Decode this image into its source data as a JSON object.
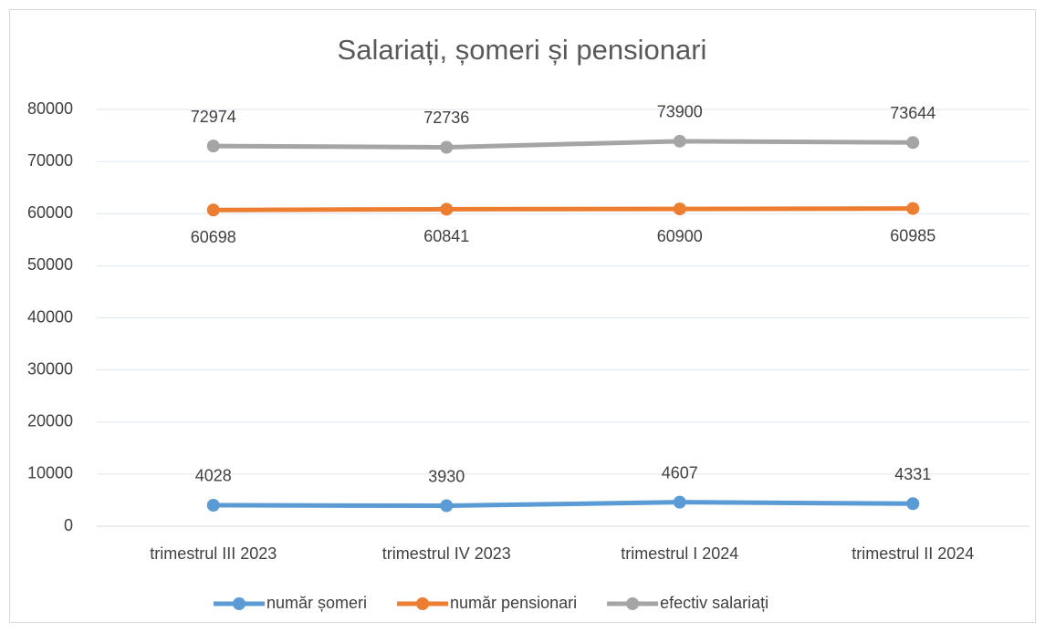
{
  "chart_data": {
    "type": "line",
    "title": "Salariați, șomeri și pensionari",
    "categories": [
      "trimestrul III 2023",
      "trimestrul IV 2023",
      "trimestrul I 2024",
      "trimestrul II 2024"
    ],
    "series": [
      {
        "name": "număr șomeri",
        "color": "#5b9bd5",
        "values": [
          4028,
          3930,
          4607,
          4331
        ]
      },
      {
        "name": "număr pensionari",
        "color": "#ed7d31",
        "values": [
          60698,
          60841,
          60900,
          60985
        ]
      },
      {
        "name": "efectiv salariați",
        "color": "#a5a5a5",
        "values": [
          72974,
          72736,
          73900,
          73644
        ]
      }
    ],
    "ylim": [
      0,
      80000
    ],
    "yticks": [
      0,
      10000,
      20000,
      30000,
      40000,
      50000,
      60000,
      70000,
      80000
    ],
    "grid": true,
    "legend": "bottom"
  }
}
